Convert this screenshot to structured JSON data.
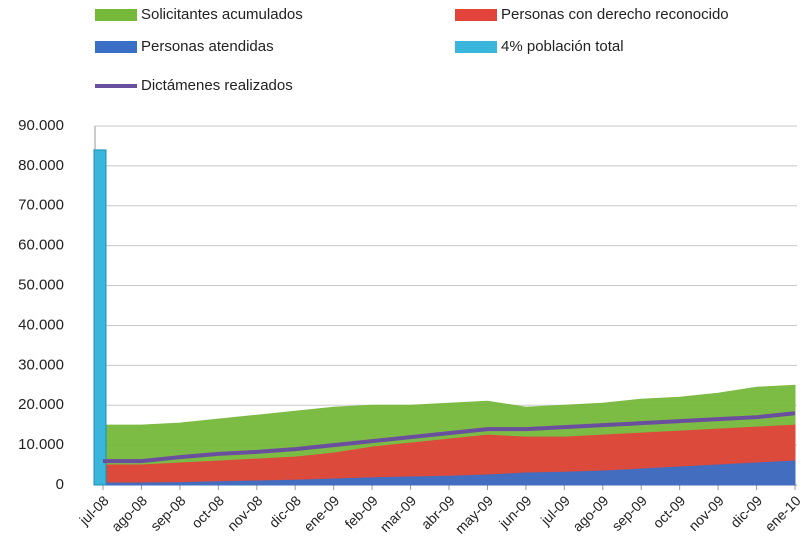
{
  "chart_data": {
    "type": "area",
    "categories": [
      "jul-08",
      "ago-08",
      "sep-08",
      "oct-08",
      "nov-08",
      "dic-08",
      "ene-09",
      "feb-09",
      "mar-09",
      "abr-09",
      "may-09",
      "jun-09",
      "jul-09",
      "ago-09",
      "sep-09",
      "oct-09",
      "nov-09",
      "dic-09",
      "ene-10"
    ],
    "series": [
      {
        "name": "Solicitantes acumulados",
        "type": "area",
        "color": "#76b83a",
        "values": [
          15000,
          15000,
          15500,
          16500,
          17500,
          18500,
          19500,
          20000,
          20000,
          20500,
          21000,
          19500,
          20000,
          20500,
          21500,
          22000,
          23000,
          24500,
          25000
        ]
      },
      {
        "name": "Personas con derecho reconocido",
        "type": "area",
        "color": "#e2443c",
        "values": [
          5000,
          5000,
          5500,
          6000,
          6500,
          7000,
          8000,
          9500,
          10500,
          11500,
          12500,
          12000,
          12000,
          12500,
          13000,
          13500,
          14000,
          14500,
          15000
        ]
      },
      {
        "name": "Personas atendidas",
        "type": "area",
        "color": "#3b6fc6",
        "values": [
          500,
          500,
          600,
          800,
          1000,
          1200,
          1500,
          1800,
          2000,
          2200,
          2500,
          3000,
          3200,
          3500,
          4000,
          4500,
          5000,
          5500,
          6000
        ]
      },
      {
        "name": "4% población total",
        "type": "bar",
        "color": "#3ab6dc",
        "values": [
          84000,
          null,
          null,
          null,
          null,
          null,
          null,
          null,
          null,
          null,
          null,
          null,
          null,
          null,
          null,
          null,
          null,
          null,
          null
        ]
      },
      {
        "name": "Dictámenes realizados",
        "type": "line",
        "color": "#6a4f9e",
        "values": [
          6000,
          6000,
          7000,
          7800,
          8300,
          9000,
          10000,
          11000,
          12000,
          13000,
          14000,
          14000,
          14500,
          15000,
          15500,
          16000,
          16500,
          17000,
          18000
        ]
      }
    ],
    "ylim": [
      0,
      90000
    ],
    "yticks": [
      0,
      {
        "value": 10000,
        "label": "10.000"
      },
      {
        "value": 20000,
        "label": "20.000"
      },
      {
        "value": 30000,
        "label": "30.000"
      },
      {
        "value": 40000,
        "label": "40.000"
      },
      {
        "value": 50000,
        "label": "50.000"
      },
      {
        "value": 60000,
        "label": "60.000"
      },
      {
        "value": 70000,
        "label": "70.000"
      },
      {
        "value": 80000,
        "label": "80.000"
      },
      {
        "value": 90000,
        "label": "90.000"
      }
    ],
    "grid": true
  }
}
